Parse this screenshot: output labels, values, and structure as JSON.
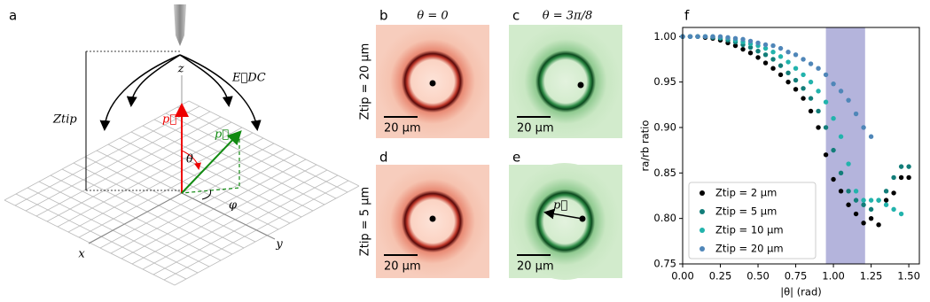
{
  "panels": {
    "a": {
      "label": "a",
      "z": "z",
      "x": "x",
      "y": "y",
      "ztip": "Ztip",
      "field": "E⃗DC",
      "p_red": "p⃗",
      "p_green": "p⃗",
      "theta": "θ",
      "phi": "φ"
    },
    "b": {
      "label": "b",
      "title": "θ = 0",
      "side": "Ztip = 20 μm",
      "scale": "20 μm"
    },
    "c": {
      "label": "c",
      "title": "θ = 3π/8",
      "scale": "20 μm"
    },
    "d": {
      "label": "d",
      "side": "Ztip = 5 μm",
      "scale": "20 μm"
    },
    "e": {
      "label": "e",
      "scale": "20 μm",
      "p": "p⃗"
    },
    "f": {
      "label": "f"
    }
  },
  "chart_data": {
    "type": "scatter",
    "xlabel": "|θ| (rad)",
    "ylabel": "ra/rb ratio",
    "xlim": [
      0,
      1.57
    ],
    "ylim": [
      0.75,
      1.01
    ],
    "xticks": [
      {
        "value": 0,
        "label": "0.00"
      },
      {
        "value": 0.25,
        "label": "0.25"
      },
      {
        "value": 0.5,
        "label": "0.50"
      },
      {
        "value": 0.75,
        "label": "0.75"
      },
      {
        "value": 1,
        "label": "1.00"
      },
      {
        "value": 1.25,
        "label": "1.25"
      },
      {
        "value": 1.5,
        "label": "1.50"
      }
    ],
    "yticks": [
      0.75,
      {
        "value": 0.8,
        "label": "0.80"
      },
      0.85,
      {
        "value": 0.9,
        "label": "0.90"
      },
      0.95,
      {
        "value": 1,
        "label": "1.00"
      }
    ],
    "shaded_region": [
      0.95,
      1.21
    ],
    "shaded_color": "#b4b4dc",
    "legend": "lower left",
    "series": [
      {
        "name": "Ztip = 2 μm",
        "color": "#000000",
        "x": [
          0,
          0.05,
          0.1,
          0.15,
          0.2,
          0.25,
          0.3,
          0.35,
          0.4,
          0.45,
          0.5,
          0.55,
          0.6,
          0.65,
          0.7,
          0.75,
          0.8,
          0.85,
          0.9,
          0.95,
          1.0,
          1.05,
          1.1,
          1.15,
          1.2,
          1.25,
          1.3,
          1.35,
          1.4,
          1.45,
          1.5
        ],
        "values": [
          1.0,
          1.0,
          1.0,
          0.999,
          0.998,
          0.996,
          0.993,
          0.99,
          0.986,
          0.982,
          0.977,
          0.971,
          0.965,
          0.958,
          0.95,
          0.942,
          0.932,
          0.918,
          0.9,
          0.87,
          0.843,
          0.83,
          0.815,
          0.805,
          0.795,
          0.8,
          0.793,
          0.82,
          0.828,
          0.845,
          0.845
        ]
      },
      {
        "name": "Ztip = 5 μm",
        "color": "#127d79",
        "x": [
          0,
          0.05,
          0.1,
          0.15,
          0.2,
          0.25,
          0.3,
          0.35,
          0.4,
          0.45,
          0.5,
          0.55,
          0.6,
          0.65,
          0.7,
          0.75,
          0.8,
          0.85,
          0.9,
          0.95,
          1.0,
          1.05,
          1.1,
          1.15,
          1.2,
          1.25,
          1.3,
          1.35,
          1.4,
          1.45,
          1.5
        ],
        "values": [
          1.0,
          1.0,
          1.0,
          1.0,
          0.999,
          0.998,
          0.996,
          0.994,
          0.991,
          0.988,
          0.984,
          0.98,
          0.975,
          0.968,
          0.96,
          0.952,
          0.943,
          0.932,
          0.918,
          0.9,
          0.875,
          0.85,
          0.83,
          0.82,
          0.815,
          0.81,
          0.82,
          0.83,
          0.845,
          0.857,
          0.857
        ]
      },
      {
        "name": "Ztip = 10 μm",
        "color": "#22b3ac",
        "x": [
          0,
          0.05,
          0.1,
          0.15,
          0.2,
          0.25,
          0.3,
          0.35,
          0.4,
          0.45,
          0.5,
          0.55,
          0.6,
          0.65,
          0.7,
          0.75,
          0.8,
          0.85,
          0.9,
          0.95,
          1.0,
          1.05,
          1.1,
          1.15,
          1.2,
          1.25,
          1.3,
          1.35,
          1.4,
          1.45
        ],
        "values": [
          1.0,
          1.0,
          1.0,
          1.0,
          1.0,
          0.999,
          0.998,
          0.996,
          0.994,
          0.992,
          0.99,
          0.987,
          0.983,
          0.978,
          0.972,
          0.965,
          0.958,
          0.95,
          0.94,
          0.928,
          0.91,
          0.89,
          0.86,
          0.83,
          0.82,
          0.82,
          0.82,
          0.815,
          0.81,
          0.805
        ]
      },
      {
        "name": "Ztip = 20 μm",
        "color": "#4f86b8",
        "x": [
          0,
          0.05,
          0.1,
          0.15,
          0.2,
          0.25,
          0.3,
          0.35,
          0.4,
          0.45,
          0.5,
          0.55,
          0.6,
          0.65,
          0.7,
          0.75,
          0.8,
          0.85,
          0.9,
          0.95,
          1.0,
          1.05,
          1.1,
          1.15,
          1.2,
          1.25
        ],
        "values": [
          1.0,
          1.0,
          1.0,
          1.0,
          1.0,
          1.0,
          0.999,
          0.998,
          0.997,
          0.995,
          0.993,
          0.991,
          0.99,
          0.987,
          0.983,
          0.98,
          0.975,
          0.97,
          0.965,
          0.958,
          0.948,
          0.94,
          0.93,
          0.915,
          0.9,
          0.89
        ]
      }
    ]
  }
}
